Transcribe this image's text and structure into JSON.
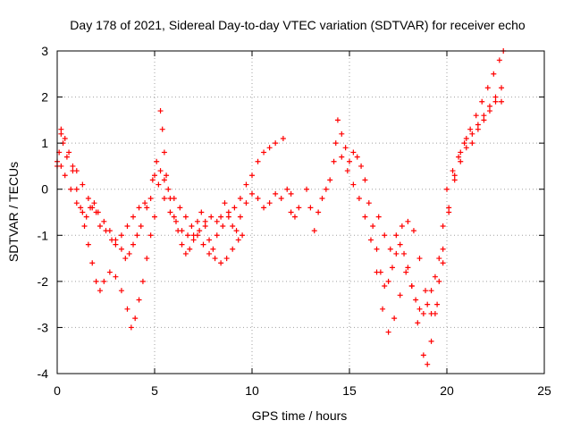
{
  "chart_data": {
    "type": "scatter",
    "title": "Day 178 of 2021, Sidereal Day-to-day VTEC variation (SDTVAR) for receiver echo",
    "xlabel": "GPS time / hours",
    "ylabel": "SDTVAR / TECUs",
    "xlim": [
      0,
      25
    ],
    "ylim": [
      -4,
      3
    ],
    "xticks": [
      "0",
      "5",
      "10",
      "15",
      "20",
      "25"
    ],
    "yticks": [
      "-4",
      "-3",
      "-2",
      "-1",
      "0",
      "1",
      "2",
      "3"
    ],
    "grid": true,
    "marker": "plus",
    "color": "#ff0000",
    "series": [
      {
        "x": [
          0.0,
          0.1,
          0.2,
          0.3,
          0.5,
          0.8,
          1.0,
          1.3,
          1.6,
          1.8,
          2.0,
          2.2,
          2.5,
          2.8,
          3.0,
          3.3,
          3.6,
          3.9,
          4.2,
          4.5,
          4.8,
          5.0,
          5.2,
          5.5,
          5.8,
          6.1,
          6.4,
          6.7,
          7.0,
          7.3,
          7.6,
          7.9,
          8.2,
          8.5,
          8.8,
          9.1,
          9.4,
          9.7,
          10.0,
          10.3,
          10.6,
          10.9,
          11.2,
          11.6
        ],
        "y": [
          0.5,
          0.8,
          1.2,
          1.0,
          0.7,
          0.5,
          0.4,
          0.1,
          -0.2,
          -0.4,
          -0.5,
          -0.8,
          -0.9,
          -1.1,
          -1.2,
          -1.0,
          -0.8,
          -0.6,
          -0.4,
          -0.3,
          -0.2,
          0.3,
          0.1,
          -0.2,
          -0.5,
          -0.7,
          -0.9,
          -1.0,
          -1.1,
          -0.9,
          -0.7,
          -0.6,
          -0.7,
          -0.8,
          -0.6,
          -0.4,
          -0.2,
          0.1,
          0.3,
          0.6,
          0.8,
          0.9,
          1.0,
          1.1
        ]
      },
      {
        "x": [
          0.0,
          0.2,
          0.4,
          0.7,
          1.0,
          1.3,
          1.5,
          1.7,
          1.9,
          2.1,
          2.4,
          2.7,
          3.0,
          3.3,
          3.5,
          3.7,
          3.9,
          4.1,
          4.3,
          4.6,
          4.9,
          5.1,
          5.3,
          5.5,
          5.7,
          6.0,
          6.3,
          6.6,
          6.9,
          7.2,
          7.5,
          7.8,
          8.1,
          8.4,
          8.7,
          9.0,
          9.3,
          9.5
        ],
        "y": [
          0.6,
          0.5,
          0.3,
          0.0,
          -0.3,
          -0.5,
          -0.6,
          -0.4,
          -0.3,
          -0.5,
          -0.7,
          -0.9,
          -1.1,
          -1.3,
          -1.5,
          -1.4,
          -1.2,
          -1.0,
          -0.8,
          -0.4,
          0.2,
          0.6,
          0.4,
          0.2,
          0.0,
          -0.2,
          -0.4,
          -0.6,
          -0.8,
          -1.0,
          -1.2,
          -1.4,
          -1.5,
          -1.6,
          -1.5,
          -1.3,
          -1.1,
          -1.0
        ]
      },
      {
        "x": [
          0.2,
          0.4,
          0.6,
          0.8,
          1.0,
          1.2,
          1.4,
          1.6,
          1.8,
          2.0,
          2.2,
          2.4,
          2.7,
          3.0,
          3.3,
          3.6,
          3.8,
          4.0,
          4.2,
          4.4,
          4.6,
          4.8,
          5.0
        ],
        "y": [
          1.3,
          1.1,
          0.8,
          0.4,
          0.0,
          -0.4,
          -0.8,
          -1.2,
          -1.6,
          -2.0,
          -2.2,
          -2.0,
          -1.8,
          -1.9,
          -2.2,
          -2.6,
          -3.0,
          -2.8,
          -2.4,
          -2.0,
          -1.5,
          -1.0,
          -0.6
        ]
      },
      {
        "x": [
          5.3,
          5.4,
          5.5,
          5.6,
          5.8,
          6.0,
          6.2,
          6.4,
          6.6,
          6.8,
          7.0,
          7.2,
          7.4,
          7.6,
          7.8,
          8.0,
          8.2,
          8.4,
          8.6,
          8.8,
          9.0,
          9.2,
          9.4,
          9.7,
          10.0,
          10.3,
          10.6,
          10.9,
          11.2,
          11.5,
          11.8,
          12.0
        ],
        "y": [
          1.7,
          1.3,
          0.8,
          0.3,
          -0.2,
          -0.6,
          -0.9,
          -1.2,
          -1.4,
          -1.3,
          -1.0,
          -0.7,
          -0.5,
          -0.8,
          -1.1,
          -1.3,
          -1.0,
          -0.6,
          -0.3,
          -0.5,
          -0.8,
          -0.9,
          -0.6,
          -0.3,
          -0.1,
          -0.2,
          -0.4,
          -0.3,
          -0.1,
          -0.2,
          0.0,
          -0.1
        ]
      },
      {
        "x": [
          12.0,
          12.2,
          12.4
        ],
        "y": [
          -0.5,
          -0.6,
          -0.4
        ]
      },
      {
        "x": [
          12.8,
          13.0,
          13.2,
          13.4,
          13.6,
          13.8,
          14.0,
          14.2,
          14.4,
          14.6,
          14.8,
          15.0,
          15.2,
          15.4,
          15.6,
          15.8,
          16.0,
          16.2,
          16.4,
          16.6,
          16.8,
          17.0,
          17.2,
          17.4,
          17.6,
          17.8,
          18.0,
          18.2,
          18.4,
          18.6,
          18.8,
          19.0,
          19.2,
          19.4,
          19.6,
          19.8,
          20.0,
          20.3,
          20.6,
          20.9,
          21.2,
          21.5,
          21.8,
          22.1,
          22.4,
          22.7,
          22.9
        ],
        "y": [
          0.0,
          -0.4,
          -0.9,
          -0.5,
          -0.2,
          0.0,
          0.2,
          0.6,
          1.5,
          1.2,
          0.9,
          0.6,
          0.8,
          0.7,
          0.5,
          0.2,
          -0.3,
          -0.8,
          -1.3,
          -1.8,
          -2.1,
          -2.0,
          -1.7,
          -1.4,
          -1.2,
          -1.4,
          -1.7,
          -2.1,
          -2.4,
          -2.6,
          -2.7,
          -2.5,
          -2.2,
          -1.9,
          -1.5,
          -0.8,
          0.0,
          0.4,
          0.7,
          1.0,
          1.3,
          1.6,
          1.9,
          2.2,
          2.5,
          2.8,
          3.0
        ]
      },
      {
        "x": [
          14.3,
          14.6,
          14.9,
          15.2,
          15.5,
          15.8,
          16.1,
          16.4,
          16.7,
          17.0,
          17.3,
          17.6,
          17.9,
          18.2,
          18.5,
          18.8,
          19.0,
          19.2,
          19.4,
          19.6,
          19.8,
          20.1,
          20.4,
          20.7,
          21.0,
          21.3,
          21.6,
          21.9,
          22.2,
          22.5,
          22.8
        ],
        "y": [
          1.0,
          0.7,
          0.4,
          0.1,
          -0.2,
          -0.6,
          -1.1,
          -1.8,
          -2.6,
          -3.1,
          -2.8,
          -2.3,
          -1.8,
          -2.1,
          -2.9,
          -3.6,
          -3.8,
          -3.3,
          -2.7,
          -2.0,
          -1.3,
          -0.5,
          0.2,
          0.6,
          0.9,
          1.2,
          1.4,
          1.6,
          1.8,
          2.0,
          2.2
        ]
      },
      {
        "x": [
          16.5,
          16.8,
          17.1,
          17.4,
          17.7,
          18.0,
          18.3,
          18.6,
          18.9,
          19.2,
          19.5,
          19.8,
          20.1,
          20.4,
          20.7,
          21.0,
          21.3,
          21.6,
          21.9,
          22.2,
          22.5,
          22.8
        ],
        "y": [
          -0.6,
          -1.0,
          -1.3,
          -1.0,
          -0.8,
          -0.7,
          -0.9,
          -1.5,
          -2.2,
          -2.7,
          -2.5,
          -1.6,
          -0.4,
          0.3,
          0.8,
          1.1,
          1.0,
          1.3,
          1.5,
          1.7,
          1.9,
          1.9
        ]
      }
    ]
  }
}
